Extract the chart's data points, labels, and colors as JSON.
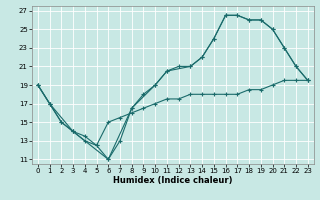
{
  "xlabel": "Humidex (Indice chaleur)",
  "bg_color": "#c8e8e4",
  "grid_color": "#b0d4d0",
  "line_color": "#1a6b6b",
  "xlim": [
    -0.5,
    23.5
  ],
  "ylim": [
    10.5,
    27.5
  ],
  "xticks": [
    0,
    1,
    2,
    3,
    4,
    5,
    6,
    7,
    8,
    9,
    10,
    11,
    12,
    13,
    14,
    15,
    16,
    17,
    18,
    19,
    20,
    21,
    22,
    23
  ],
  "yticks": [
    11,
    13,
    15,
    17,
    19,
    21,
    23,
    25,
    27
  ],
  "s1x": [
    0,
    1,
    2,
    3,
    4,
    5,
    6,
    7,
    8,
    9,
    10,
    11,
    12,
    13,
    14,
    15,
    16,
    17,
    18,
    19,
    20,
    21,
    22,
    23
  ],
  "s1y": [
    19.0,
    17.0,
    15.0,
    14.0,
    13.0,
    12.5,
    11.0,
    13.0,
    16.5,
    18.0,
    19.0,
    20.5,
    21.0,
    21.0,
    22.0,
    24.0,
    26.5,
    26.5,
    26.0,
    26.0,
    25.0,
    23.0,
    21.0,
    19.5
  ],
  "s2x": [
    0,
    1,
    3,
    6,
    8,
    10,
    11,
    13,
    14,
    15,
    16,
    17,
    18,
    19,
    20,
    21,
    22,
    23
  ],
  "s2y": [
    19.0,
    17.0,
    14.0,
    11.0,
    16.5,
    19.0,
    20.5,
    21.0,
    22.0,
    24.0,
    26.5,
    26.5,
    26.0,
    26.0,
    25.0,
    23.0,
    21.0,
    19.5
  ],
  "s3x": [
    0,
    1,
    2,
    3,
    4,
    5,
    6,
    7,
    8,
    9,
    10,
    11,
    12,
    13,
    14,
    15,
    16,
    17,
    18,
    19,
    20,
    21,
    22,
    23
  ],
  "s3y": [
    19.0,
    17.0,
    15.0,
    14.0,
    13.5,
    12.5,
    15.0,
    15.5,
    16.0,
    16.5,
    17.0,
    17.5,
    17.5,
    18.0,
    18.0,
    18.0,
    18.0,
    18.0,
    18.5,
    18.5,
    19.0,
    19.5,
    19.5,
    19.5
  ]
}
